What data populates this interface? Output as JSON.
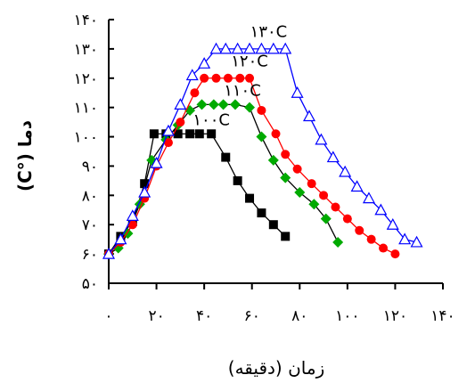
{
  "chart_data": {
    "type": "line",
    "title": "",
    "xlabel": "زمان (دقیقه)",
    "ylabel": "دما (°C)",
    "xlim": [
      0,
      140
    ],
    "ylim": [
      50,
      140
    ],
    "x_ticks": [
      0,
      20,
      40,
      60,
      80,
      100,
      120,
      140
    ],
    "x_tick_labels": [
      "۰",
      "۲۰",
      "۴۰",
      "۶۰",
      "۸۰",
      "۱۰۰",
      "۱۲۰",
      "۱۴۰"
    ],
    "y_ticks": [
      50,
      60,
      70,
      80,
      90,
      100,
      110,
      120,
      130,
      140
    ],
    "y_tick_labels": [
      "۵۰",
      "۶۰",
      "۷۰",
      "۸۰",
      "۹۰",
      "۱۰۰",
      "۱۱۰",
      "۱۲۰",
      "۱۳۰",
      "۱۴۰"
    ],
    "grid": false,
    "series": [
      {
        "name": "۱۰۰C",
        "marker": "square",
        "color": "#000000",
        "x": [
          0,
          5,
          10,
          15,
          19,
          24,
          29,
          34,
          38,
          43,
          49,
          54,
          59,
          64,
          69,
          74
        ],
        "y": [
          60,
          66,
          71,
          84,
          101,
          101,
          101,
          101,
          101,
          101,
          93,
          85,
          79,
          74,
          70,
          66
        ]
      },
      {
        "name": "۱۱۰C",
        "marker": "diamond",
        "color": "#00aa00",
        "line_color": "#000000",
        "x": [
          0,
          4,
          8,
          13,
          18,
          24,
          29,
          34,
          39,
          44,
          48,
          53,
          59,
          64,
          69,
          74,
          80,
          86,
          91,
          96
        ],
        "y": [
          60,
          62,
          67,
          77,
          92,
          99,
          104,
          109,
          111,
          111,
          111,
          111,
          110,
          100,
          92,
          86,
          81,
          77,
          72,
          64
        ]
      },
      {
        "name": "۱۲۰C",
        "marker": "circle",
        "color": "#ff0000",
        "line_color": "#ff0000",
        "x": [
          0,
          5,
          10,
          15,
          20,
          25,
          30,
          36,
          40,
          45,
          50,
          55,
          59,
          64,
          70,
          74,
          79,
          85,
          90,
          95,
          100,
          105,
          110,
          115,
          120
        ],
        "y": [
          60,
          64,
          70,
          79,
          90,
          98,
          105,
          115,
          120,
          120,
          120,
          120,
          120,
          109,
          101,
          94,
          89,
          84,
          80,
          76,
          72,
          68,
          65,
          62,
          60
        ]
      },
      {
        "name": "۱۳۰C",
        "marker": "triangle",
        "color": "#0000ff",
        "line_color": "#0000ff",
        "x": [
          0,
          5,
          10,
          15,
          20,
          25,
          30,
          35,
          40,
          45,
          49,
          54,
          59,
          64,
          69,
          74,
          79,
          84,
          89,
          94,
          99,
          104,
          109,
          114,
          119,
          124,
          129
        ],
        "y": [
          60,
          65,
          73,
          81,
          91,
          102,
          111,
          121,
          125,
          130,
          130,
          130,
          130,
          130,
          130,
          130,
          115,
          107,
          99,
          93,
          88,
          83,
          79,
          75,
          70,
          65,
          64
        ]
      }
    ],
    "annotations": [
      {
        "text": "۱۳۰C",
        "x": 67,
        "y": 134
      },
      {
        "text": "۱۲۰C",
        "x": 59,
        "y": 124
      },
      {
        "text": "۱۱۰C",
        "x": 56,
        "y": 114
      },
      {
        "text": "۱۰۰C",
        "x": 43,
        "y": 104
      }
    ]
  }
}
